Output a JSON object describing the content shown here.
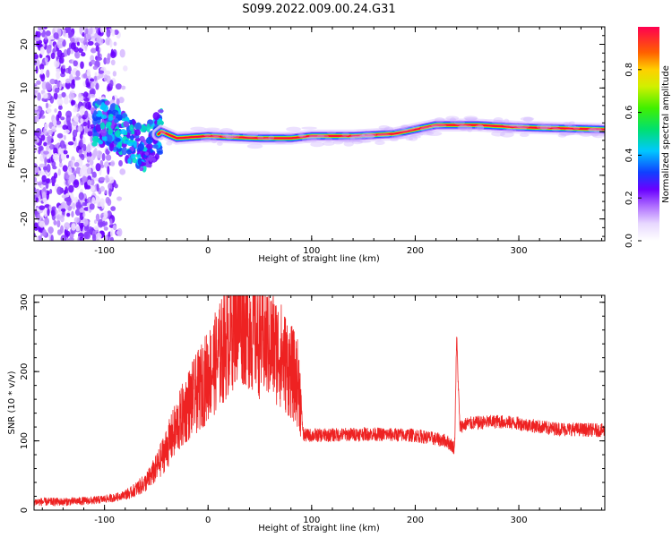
{
  "title": "S099.2022.009.00.24.G31",
  "chart_data": [
    {
      "type": "heatmap",
      "xlabel": "Height of straight line (km)",
      "ylabel": "Frequency (Hz)",
      "xlim": [
        -168,
        383
      ],
      "ylim": [
        -25,
        24
      ],
      "xticks": [
        -100,
        0,
        100,
        200,
        300
      ],
      "yticks": [
        -20,
        -10,
        0,
        10,
        20
      ],
      "colorbar": {
        "label": "Normalized spectral amplitude",
        "range": [
          0,
          1
        ],
        "ticks": [
          "0.0",
          "0.2",
          "0.4",
          "0.6",
          "0.8"
        ],
        "colormap": "white-purple-blue-cyan-green-yellow-red"
      },
      "ridge": {
        "description_points": [
          [
            -100,
            2
          ],
          [
            -85,
            0
          ],
          [
            -70,
            -3
          ],
          [
            -60,
            -4
          ],
          [
            -50,
            -1
          ],
          [
            -45,
            0
          ],
          [
            -30,
            -1.5
          ],
          [
            0,
            -1
          ],
          [
            50,
            -1.5
          ],
          [
            80,
            -1.5
          ],
          [
            100,
            -1
          ],
          [
            140,
            -1
          ],
          [
            180,
            -0.5
          ],
          [
            200,
            0.5
          ],
          [
            220,
            1.5
          ],
          [
            260,
            1.5
          ],
          [
            300,
            1
          ],
          [
            383,
            0.5
          ]
        ]
      },
      "grid": false
    },
    {
      "type": "line",
      "color": "#ee2222",
      "xlabel": "Height of straight line (km)",
      "ylabel": "SNR (10 * v/v)",
      "xlim": [
        -168,
        383
      ],
      "ylim": [
        0,
        310
      ],
      "xticks": [
        -100,
        0,
        100,
        200,
        300
      ],
      "yticks": [
        0,
        100,
        200,
        300
      ],
      "series": [
        {
          "x": [
            -168,
            -140,
            -110,
            -90,
            -75,
            -60,
            -50,
            -40,
            -30,
            -20,
            -10,
            0,
            10,
            20,
            25,
            30,
            40,
            50,
            60,
            70,
            80,
            88,
            92,
            110,
            150,
            200,
            230,
            238,
            240,
            243,
            250,
            280,
            300,
            330,
            383
          ],
          "y": [
            12,
            12,
            14,
            18,
            25,
            40,
            60,
            90,
            120,
            150,
            170,
            195,
            220,
            250,
            270,
            280,
            265,
            245,
            240,
            225,
            200,
            180,
            108,
            108,
            110,
            108,
            100,
            90,
            250,
            120,
            125,
            128,
            125,
            118,
            115
          ]
        }
      ],
      "grid": false
    }
  ]
}
